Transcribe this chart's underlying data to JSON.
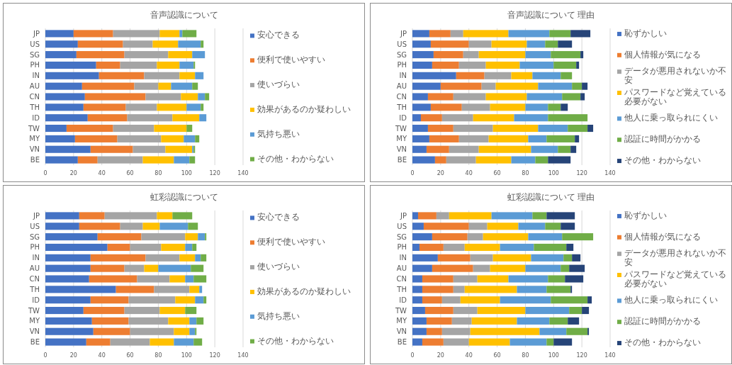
{
  "chart_data": [
    {
      "type": "bar",
      "orientation": "horizontal",
      "stacked": true,
      "title": "音声認識について",
      "categories": [
        "JP",
        "US",
        "SG",
        "PH",
        "IN",
        "AU",
        "CN",
        "TH",
        "ID",
        "TW",
        "MY",
        "VN",
        "BE"
      ],
      "xlim": [
        0,
        140
      ],
      "xticks": [
        0,
        20,
        40,
        60,
        80,
        100,
        120,
        140
      ],
      "grid": "x",
      "legend": "right",
      "series": [
        {
          "name": "安心できる",
          "color": "#4472c4",
          "values": [
            20,
            23,
            22,
            36,
            38,
            26,
            28,
            27,
            30,
            15,
            21,
            32,
            23
          ]
        },
        {
          "name": "便利で使いやすい",
          "color": "#ed7d31",
          "values": [
            28,
            32,
            34,
            17,
            32,
            37,
            43,
            30,
            28,
            33,
            30,
            30,
            14
          ]
        },
        {
          "name": "使いづらい",
          "color": "#a5a5a5",
          "values": [
            33,
            21,
            31,
            26,
            25,
            17,
            25,
            22,
            32,
            29,
            31,
            23,
            32
          ]
        },
        {
          "name": "効果があるのか疑わしい",
          "color": "#ffc000",
          "values": [
            14,
            18,
            17,
            16,
            11,
            9,
            12,
            21,
            19,
            23,
            16,
            19,
            22
          ]
        },
        {
          "name": "気持ち悪い",
          "color": "#5b9bd5",
          "values": [
            2,
            16,
            9,
            10,
            6,
            15,
            5,
            10,
            5,
            0,
            8,
            1,
            11
          ]
        },
        {
          "name": "その他・わからない",
          "color": "#70ad47",
          "values": [
            10,
            2,
            0,
            1,
            0,
            4,
            3,
            2,
            0,
            4,
            3,
            1,
            4
          ]
        }
      ]
    },
    {
      "type": "bar",
      "orientation": "horizontal",
      "stacked": true,
      "title": "音声認識について 理由",
      "categories": [
        "JP",
        "US",
        "SG",
        "PH",
        "IN",
        "AU",
        "CN",
        "TH",
        "ID",
        "TW",
        "MY",
        "VN",
        "BE"
      ],
      "xlim": [
        0,
        140
      ],
      "xticks": [
        0,
        20,
        40,
        60,
        80,
        100,
        120,
        140
      ],
      "grid": "x",
      "legend": "right",
      "series": [
        {
          "name": "恥ずかしい",
          "color": "#4472c4",
          "values": [
            12,
            13,
            15,
            14,
            31,
            20,
            11,
            13,
            6,
            11,
            12,
            10,
            16
          ]
        },
        {
          "name": "個人情報が気になる",
          "color": "#ed7d31",
          "values": [
            15,
            27,
            21,
            19,
            20,
            29,
            18,
            22,
            15,
            18,
            21,
            16,
            8
          ]
        },
        {
          "name": "データが悪用されないか不安",
          "color": "#a5a5a5",
          "values": [
            9,
            16,
            11,
            19,
            19,
            10,
            23,
            20,
            22,
            28,
            21,
            21,
            21
          ]
        },
        {
          "name": "パスワードなど覚えている必要がない",
          "color": "#ffc000",
          "values": [
            32,
            25,
            33,
            24,
            15,
            30,
            29,
            25,
            29,
            32,
            28,
            37,
            25
          ]
        },
        {
          "name": "他人に乗っ取られにくい",
          "color": "#5b9bd5",
          "values": [
            29,
            13,
            18,
            24,
            20,
            24,
            25,
            16,
            24,
            21,
            13,
            19,
            17
          ]
        },
        {
          "name": "認証に時間がかかる",
          "color": "#70ad47",
          "values": [
            15,
            9,
            21,
            16,
            8,
            7,
            13,
            9,
            28,
            14,
            20,
            9,
            9
          ]
        },
        {
          "name": "その他・わからない",
          "color": "#264478",
          "values": [
            14,
            10,
            2,
            2,
            0,
            4,
            3,
            5,
            0,
            4,
            3,
            4,
            16
          ]
        }
      ]
    },
    {
      "type": "bar",
      "orientation": "horizontal",
      "stacked": true,
      "title": "虹彩認識について",
      "categories": [
        "JP",
        "US",
        "SG",
        "PH",
        "IN",
        "AU",
        "CN",
        "TH",
        "ID",
        "TW",
        "MY",
        "VN",
        "BE"
      ],
      "xlim": [
        0,
        140
      ],
      "xticks": [
        0,
        20,
        40,
        60,
        80,
        100,
        120,
        140
      ],
      "grid": "x",
      "legend": "right",
      "series": [
        {
          "name": "安心できる",
          "color": "#4472c4",
          "values": [
            24,
            24,
            37,
            44,
            32,
            32,
            31,
            50,
            32,
            27,
            33,
            34,
            29
          ]
        },
        {
          "name": "便利で使いやすい",
          "color": "#ed7d31",
          "values": [
            18,
            29,
            31,
            16,
            39,
            24,
            34,
            27,
            27,
            29,
            26,
            26,
            17
          ]
        },
        {
          "name": "使いづらい",
          "color": "#a5a5a5",
          "values": [
            37,
            16,
            31,
            22,
            24,
            14,
            23,
            25,
            33,
            25,
            28,
            31,
            28
          ]
        },
        {
          "name": "効果があるのか疑わしい",
          "color": "#ffc000",
          "values": [
            11,
            12,
            9,
            17,
            11,
            10,
            11,
            7,
            14,
            18,
            15,
            11,
            17
          ]
        },
        {
          "name": "気持ち悪い",
          "color": "#5b9bd5",
          "values": [
            0,
            20,
            5,
            5,
            4,
            23,
            6,
            2,
            6,
            0,
            5,
            4,
            14
          ]
        },
        {
          "name": "その他・わからない",
          "color": "#70ad47",
          "values": [
            14,
            7,
            1,
            3,
            4,
            9,
            9,
            0,
            2,
            8,
            5,
            1,
            6
          ]
        }
      ]
    },
    {
      "type": "bar",
      "orientation": "horizontal",
      "stacked": true,
      "title": "虹彩認識について 理由",
      "categories": [
        "JP",
        "US",
        "SG",
        "PH",
        "IN",
        "AU",
        "CN",
        "TH",
        "ID",
        "TW",
        "MY",
        "VN",
        "BE"
      ],
      "xlim": [
        0,
        140
      ],
      "xticks": [
        0,
        20,
        40,
        60,
        80,
        100,
        120,
        140
      ],
      "grid": "x",
      "legend": "right",
      "series": [
        {
          "name": "恥ずかしい",
          "color": "#4472c4",
          "values": [
            4,
            8,
            14,
            5,
            18,
            14,
            7,
            7,
            7,
            9,
            10,
            10,
            7
          ]
        },
        {
          "name": "個人情報が気になる",
          "color": "#ed7d31",
          "values": [
            13,
            32,
            25,
            17,
            23,
            29,
            22,
            22,
            14,
            20,
            18,
            11,
            15
          ]
        },
        {
          "name": "データが悪用されないか不安",
          "color": "#a5a5a5",
          "values": [
            9,
            13,
            11,
            15,
            16,
            12,
            17,
            8,
            13,
            17,
            14,
            20,
            18
          ]
        },
        {
          "name": "パスワードなど覚えている必要がない",
          "color": "#ffc000",
          "values": [
            30,
            22,
            32,
            25,
            27,
            25,
            22,
            37,
            28,
            34,
            32,
            49,
            29
          ]
        },
        {
          "name": "他人に乗っ取られにくい",
          "color": "#5b9bd5",
          "values": [
            29,
            19,
            24,
            24,
            23,
            25,
            28,
            21,
            36,
            31,
            23,
            19,
            26
          ]
        },
        {
          "name": "認証に時間がかかる",
          "color": "#70ad47",
          "values": [
            10,
            11,
            22,
            23,
            6,
            6,
            12,
            17,
            26,
            9,
            13,
            15,
            5
          ]
        },
        {
          "name": "その他・わからない",
          "color": "#264478",
          "values": [
            20,
            10,
            0,
            5,
            6,
            11,
            13,
            1,
            3,
            5,
            8,
            1,
            13
          ]
        }
      ]
    }
  ]
}
